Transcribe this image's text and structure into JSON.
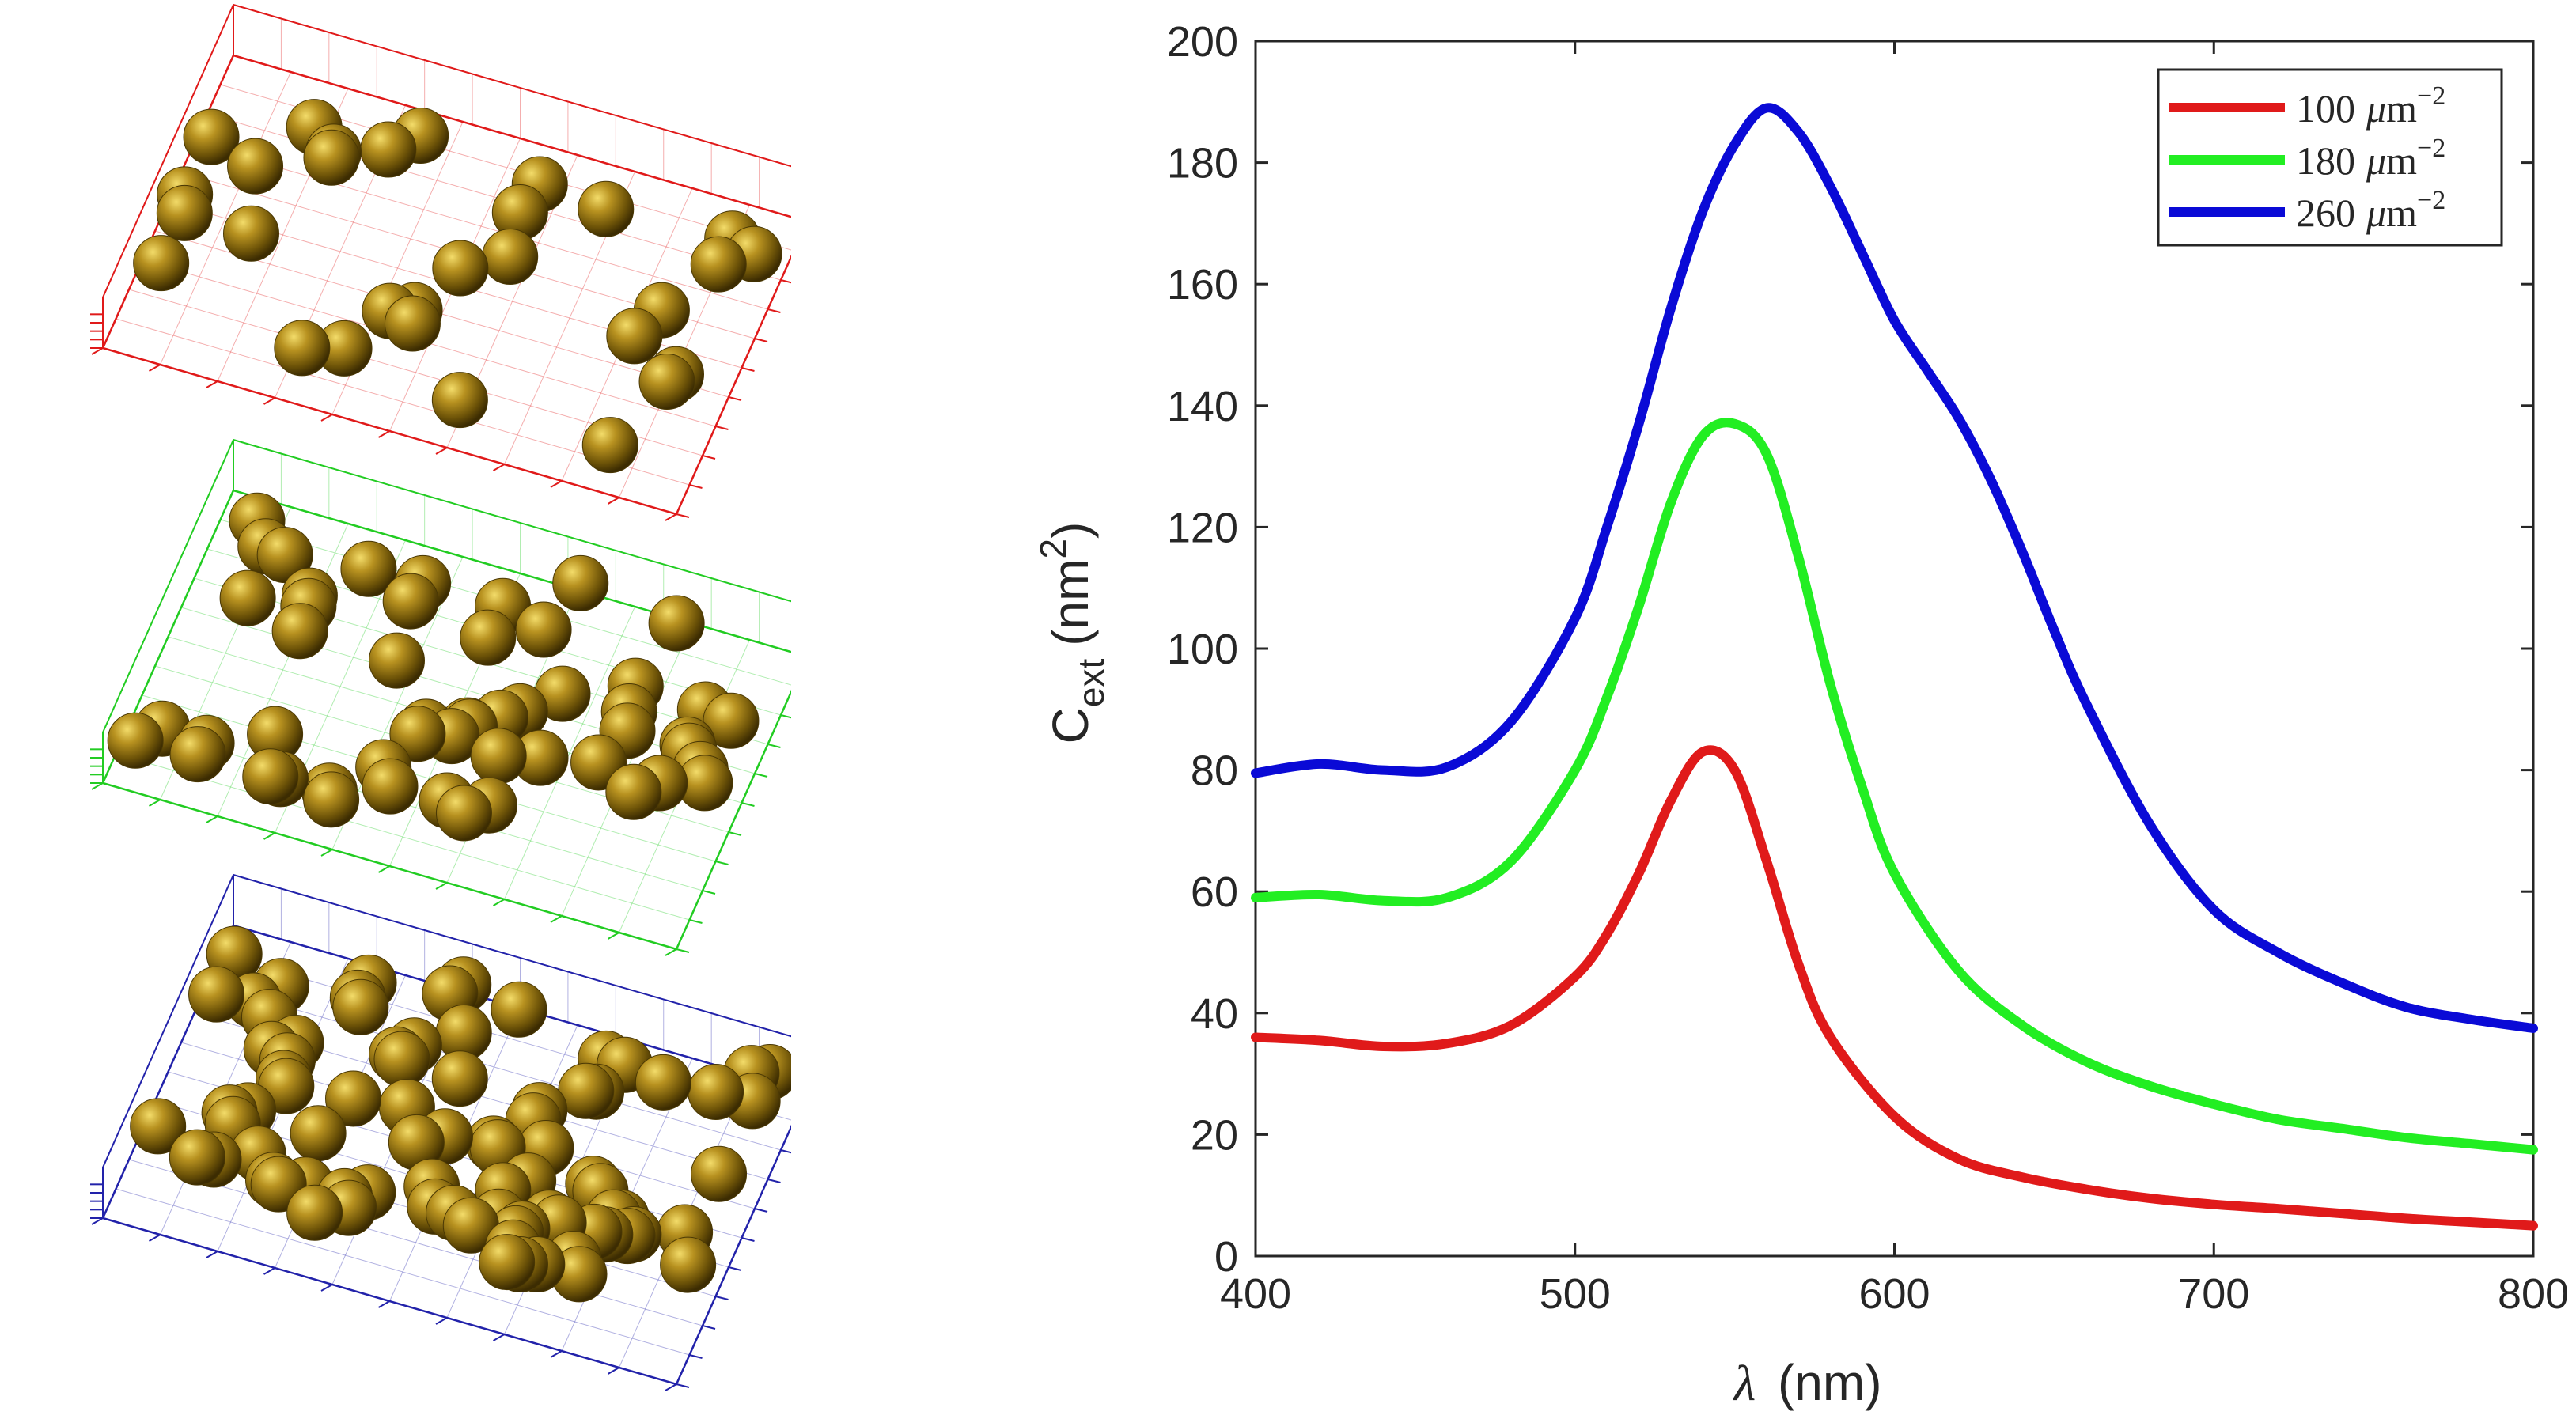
{
  "panels": [
    {
      "name": "density-100",
      "color": "#e01a1a",
      "count": 30,
      "seed": 11
    },
    {
      "name": "density-180",
      "color": "#22cc22",
      "count": 52,
      "seed": 23
    },
    {
      "name": "density-260",
      "color": "#2222aa",
      "count": 82,
      "seed": 37
    }
  ],
  "chart_data": {
    "type": "line",
    "xlabel_symbol": "λ",
    "xlabel_unit": "(nm)",
    "ylabel_main": "C",
    "ylabel_sub": "ext",
    "ylabel_unit_open": "(nm",
    "ylabel_unit_sup": "2",
    "ylabel_unit_close": ")",
    "xlim": [
      400,
      800
    ],
    "ylim": [
      0,
      200
    ],
    "xticks": [
      400,
      500,
      600,
      700,
      800
    ],
    "yticks": [
      0,
      20,
      40,
      60,
      80,
      100,
      120,
      140,
      160,
      180,
      200
    ],
    "grid": false,
    "legend_position": "top-right",
    "series": [
      {
        "name": "100 μm⁻²",
        "legend_number": "100",
        "legend_unit": "μm",
        "legend_exp": "−2",
        "color": "#e01a1a",
        "x": [
          400,
          420,
          440,
          460,
          480,
          500,
          510,
          520,
          530,
          540,
          550,
          560,
          570,
          580,
          600,
          620,
          640,
          660,
          680,
          700,
          720,
          740,
          760,
          780,
          800
        ],
        "y": [
          36,
          35.5,
          34.5,
          35,
          38,
          46,
          53,
          63,
          75,
          83,
          80,
          65,
          48,
          36,
          23,
          16,
          13,
          11,
          9.5,
          8.5,
          7.8,
          7,
          6.2,
          5.6,
          5
        ]
      },
      {
        "name": "180 μm⁻²",
        "legend_number": "180",
        "legend_unit": "μm",
        "legend_exp": "−2",
        "color": "#22ee22",
        "x": [
          400,
          420,
          440,
          460,
          480,
          500,
          510,
          520,
          530,
          540,
          550,
          560,
          570,
          580,
          590,
          600,
          620,
          640,
          660,
          680,
          700,
          720,
          740,
          760,
          780,
          800
        ],
        "y": [
          59,
          59.5,
          58.5,
          59,
          65,
          80,
          92,
          107,
          124,
          135,
          137,
          132,
          115,
          94,
          77,
          63,
          47,
          38,
          32,
          28,
          25,
          22.5,
          21,
          19.5,
          18.5,
          17.5
        ]
      },
      {
        "name": "260 μm⁻²",
        "legend_number": "260",
        "legend_unit": "μm",
        "legend_exp": "−2",
        "color": "#0a0ad6",
        "x": [
          400,
          420,
          440,
          460,
          480,
          500,
          510,
          520,
          530,
          540,
          550,
          560,
          570,
          580,
          590,
          600,
          610,
          620,
          630,
          640,
          650,
          660,
          680,
          700,
          720,
          740,
          760,
          780,
          800
        ],
        "y": [
          79.5,
          81,
          80,
          80.5,
          88,
          105,
          120,
          137,
          156,
          172,
          183,
          189,
          185,
          176,
          165,
          154,
          146,
          138,
          128,
          116,
          103,
          91,
          71,
          57,
          50,
          45,
          41,
          39,
          37.5
        ]
      }
    ]
  }
}
